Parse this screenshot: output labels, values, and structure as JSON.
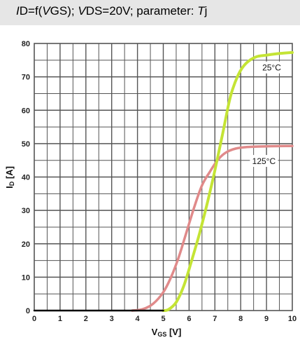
{
  "title": {
    "i_italic": "I",
    "i_rest": "D=f(",
    "v_italic": "V",
    "v_rest": "GS); ",
    "vds_italic": "V",
    "vds_rest": "DS=20V; parameter: ",
    "tj_italic": "T",
    "tj_rest": "j"
  },
  "colors": {
    "series_25": "#c4e435",
    "series_125": "#e08a8a",
    "baseline": "#000000",
    "grid": "#555555",
    "title_bg": "#e6e6e6"
  },
  "chart_data": {
    "type": "line",
    "xlabel": "VGS [V]",
    "ylabel": "ID [A]",
    "xlim": [
      0,
      10
    ],
    "ylim": [
      0,
      80
    ],
    "x_ticks": [
      "0",
      "1",
      "2",
      "3",
      "4",
      "5",
      "6",
      "7",
      "8",
      "9",
      "10"
    ],
    "y_ticks": [
      "0",
      "10",
      "20",
      "30",
      "40",
      "50",
      "60",
      "70",
      "80"
    ],
    "grid": true,
    "minor_grid": true,
    "series": [
      {
        "name": "25°C",
        "points": [
          [
            5.0,
            0
          ],
          [
            5.2,
            0.3
          ],
          [
            5.5,
            2.5
          ],
          [
            5.8,
            7.5
          ],
          [
            6.1,
            15
          ],
          [
            6.4,
            23
          ],
          [
            6.7,
            32
          ],
          [
            7.0,
            42
          ],
          [
            7.3,
            53
          ],
          [
            7.6,
            64
          ],
          [
            7.9,
            70.5
          ],
          [
            8.2,
            74
          ],
          [
            8.6,
            76
          ],
          [
            9.0,
            76.5
          ],
          [
            9.5,
            77
          ],
          [
            10.0,
            77.3
          ]
        ]
      },
      {
        "name": "125°C",
        "points": [
          [
            3.8,
            0
          ],
          [
            4.2,
            0.4
          ],
          [
            4.6,
            2
          ],
          [
            5.0,
            5.5
          ],
          [
            5.3,
            10
          ],
          [
            5.6,
            16
          ],
          [
            5.9,
            23.5
          ],
          [
            6.2,
            31
          ],
          [
            6.5,
            37.5
          ],
          [
            6.8,
            41.5
          ],
          [
            7.1,
            45
          ],
          [
            7.4,
            47.2
          ],
          [
            7.8,
            48.5
          ],
          [
            8.3,
            49
          ],
          [
            9.0,
            49.2
          ],
          [
            10.0,
            49.3
          ]
        ]
      },
      {
        "name": "",
        "points": [
          [
            0,
            0
          ],
          [
            5.0,
            0
          ]
        ]
      }
    ]
  }
}
